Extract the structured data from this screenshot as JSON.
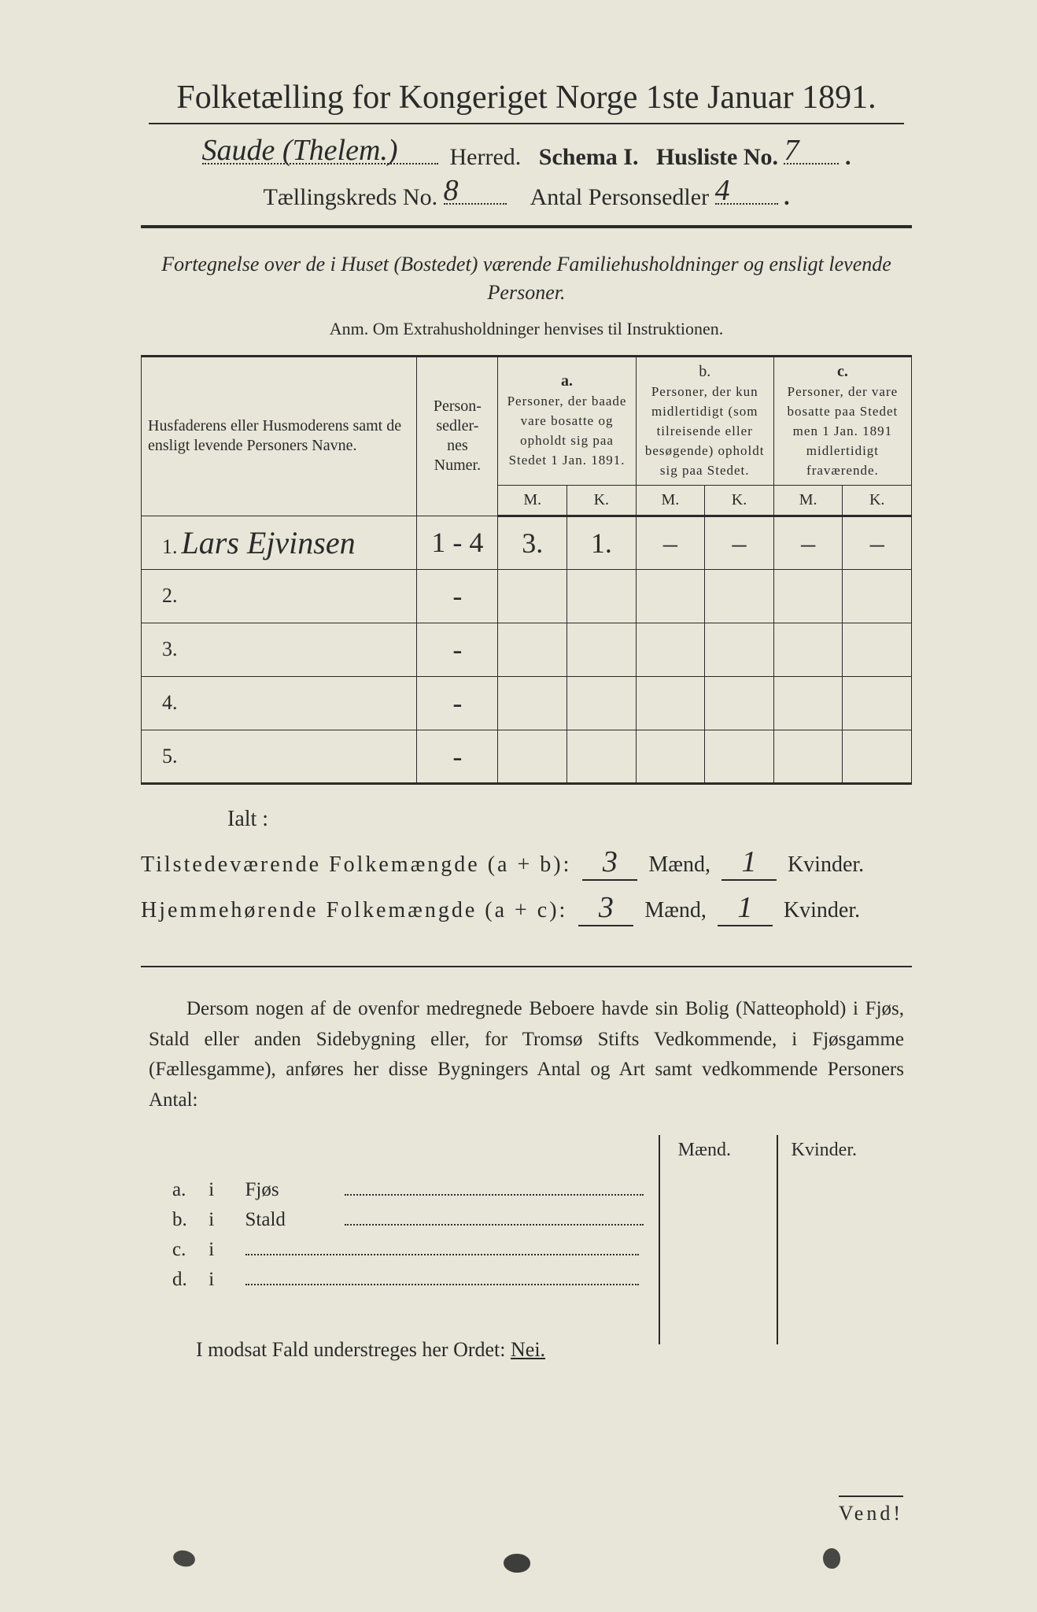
{
  "colors": {
    "paper": "#e8e6d8",
    "ink": "#2a2a2a",
    "backdrop": "#1a1a1a"
  },
  "header": {
    "title": "Folketælling for Kongeriget Norge 1ste Januar 1891.",
    "herred_handwritten": "Saude (Thelem.)",
    "herred_label": "Herred.",
    "schema_label": "Schema I.",
    "husliste_label": "Husliste No.",
    "husliste_no": "7",
    "kreds_label": "Tællingskreds No.",
    "kreds_no": "8",
    "personsedler_label": "Antal Personsedler",
    "personsedler_no": "4"
  },
  "subtitle": "Fortegnelse over de i Huset (Bostedet) værende Familiehusholdninger og ensligt levende Personer.",
  "anm": "Anm. Om Extrahusholdninger henvises til Instruktionen.",
  "table": {
    "head_names": "Husfaderens eller Husmoderens samt de ensligt levende Personers Navne.",
    "head_num": "Person-\nsedler-\nnes\nNumer.",
    "group_a_letter": "a.",
    "group_a": "Personer, der baade vare bosatte og opholdt sig paa Stedet 1 Jan. 1891.",
    "group_b_letter": "b.",
    "group_b": "Personer, der kun midlertidigt (som tilreisende eller besøgende) opholdt sig paa Stedet.",
    "group_c_letter": "c.",
    "group_c": "Personer, der vare bosatte paa Stedet men 1 Jan. 1891 midlertidigt fraværende.",
    "mk_m": "M.",
    "mk_k": "K.",
    "rows": [
      {
        "n": "1.",
        "name": "Lars Ejvinsen",
        "num": "1 - 4",
        "aM": "3.",
        "aK": "1.",
        "bM": "–",
        "bK": "–",
        "cM": "–",
        "cK": "–"
      },
      {
        "n": "2.",
        "name": "",
        "num": "-",
        "aM": "",
        "aK": "",
        "bM": "",
        "bK": "",
        "cM": "",
        "cK": ""
      },
      {
        "n": "3.",
        "name": "",
        "num": "-",
        "aM": "",
        "aK": "",
        "bM": "",
        "bK": "",
        "cM": "",
        "cK": ""
      },
      {
        "n": "4.",
        "name": "",
        "num": "-",
        "aM": "",
        "aK": "",
        "bM": "",
        "bK": "",
        "cM": "",
        "cK": ""
      },
      {
        "n": "5.",
        "name": "",
        "num": "-",
        "aM": "",
        "aK": "",
        "bM": "",
        "bK": "",
        "cM": "",
        "cK": ""
      }
    ]
  },
  "totals": {
    "ialt": "Ialt :",
    "line1_label": "Tilstedeværende Folkemængde (a + b):",
    "line2_label": "Hjemmehørende Folkemængde (a + c):",
    "maend": "Mænd,",
    "kvinder": "Kvinder.",
    "l1_m": "3",
    "l1_k": "1",
    "l2_m": "3",
    "l2_k": "1"
  },
  "paragraph": "Dersom nogen af de ovenfor medregnede Beboere havde sin Bolig (Natteophold) i Fjøs, Stald eller anden Sidebygning eller, for Tromsø Stifts Vedkommende, i Fjøsgamme (Fællesgamme), anføres her disse Bygningers Antal og Art samt vedkommende Personers Antal:",
  "mk": {
    "m": "Mænd.",
    "k": "Kvinder."
  },
  "abcd": {
    "rows": [
      {
        "l": "a.",
        "i": "i",
        "w": "Fjøs"
      },
      {
        "l": "b.",
        "i": "i",
        "w": "Stald"
      },
      {
        "l": "c.",
        "i": "i",
        "w": ""
      },
      {
        "l": "d.",
        "i": "i",
        "w": ""
      }
    ]
  },
  "modsat": {
    "text_before": "I modsat Fald understreges her Ordet: ",
    "nei": "Nei."
  },
  "vend": "Vend!"
}
